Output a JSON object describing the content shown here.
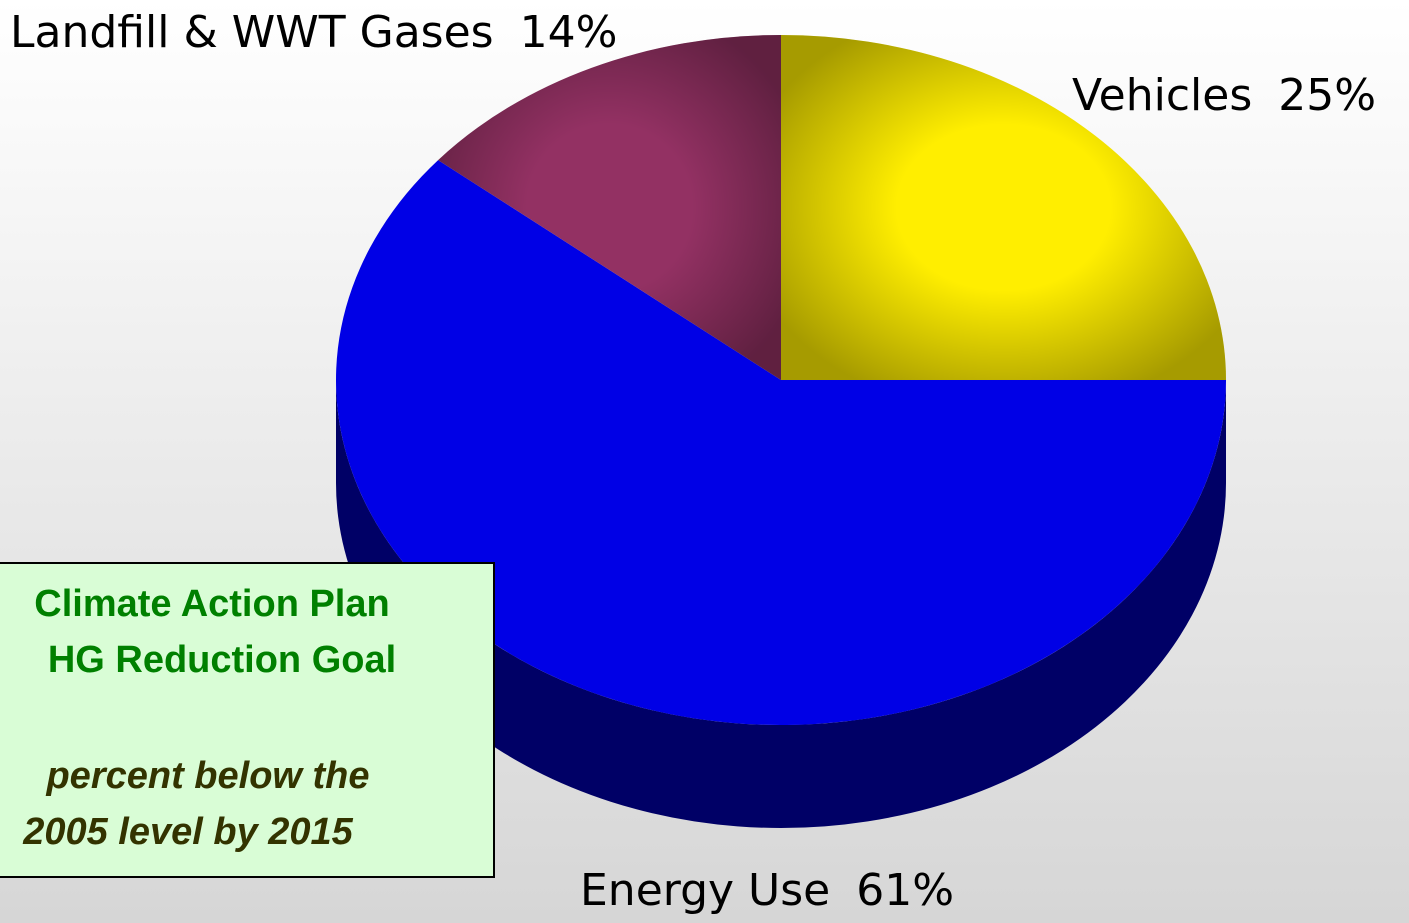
{
  "chart_data": {
    "type": "pie",
    "categories": [
      "Vehicles",
      "Energy Use",
      "Landfill & WWT Gases"
    ],
    "values": [
      25,
      61,
      14
    ],
    "value_labels": [
      "25%",
      "61%",
      "14%"
    ],
    "colors": [
      "#ffee00",
      "#0000e6",
      "#933163"
    ]
  },
  "note": {
    "lines": [
      "Climate Action Plan",
      "HG Reduction Goal",
      "percent below the",
      "2005 level by 2015"
    ]
  }
}
